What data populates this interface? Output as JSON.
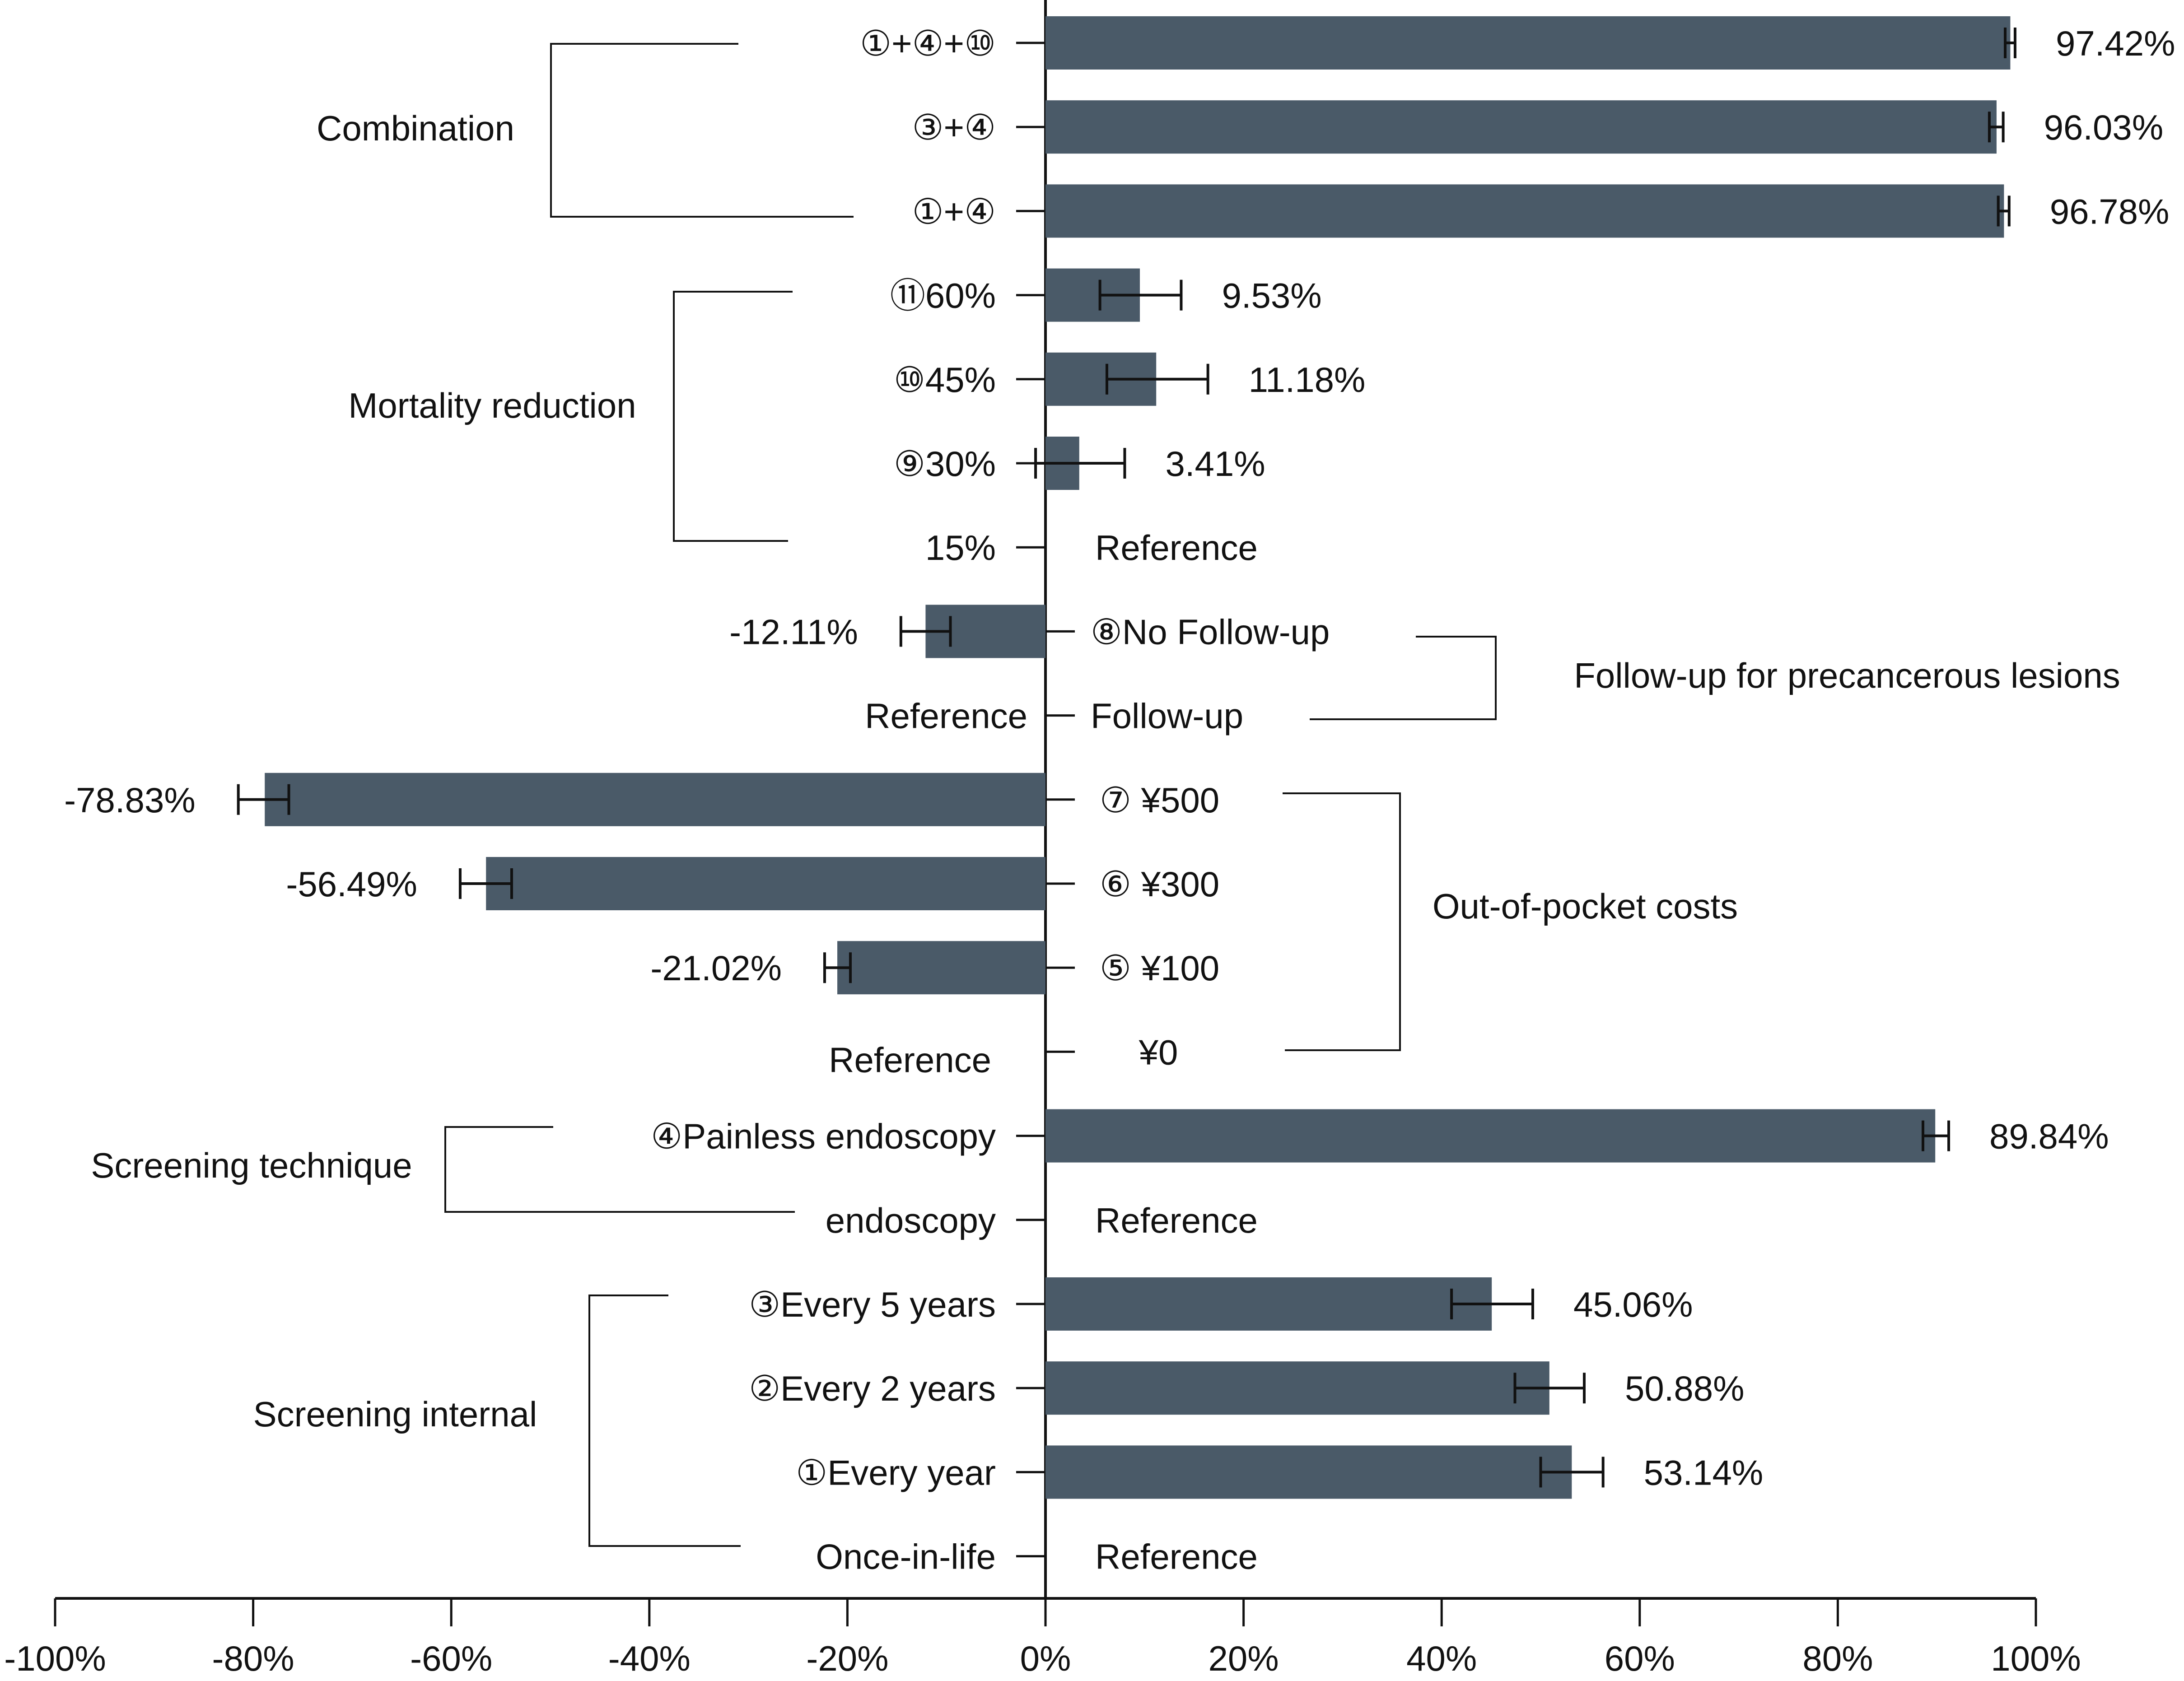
{
  "chart_data": {
    "type": "bar",
    "orientation": "horizontal",
    "xlabel": "",
    "ylabel": "",
    "xlim": [
      -100,
      100
    ],
    "x_ticks": [
      -100,
      -80,
      -60,
      -40,
      -20,
      0,
      20,
      40,
      60,
      80,
      100
    ],
    "x_tick_labels": [
      "-100%",
      "-80%",
      "-60%",
      "-40%",
      "-20%",
      "0%",
      "20%",
      "40%",
      "60%",
      "80%",
      "100%"
    ],
    "bar_color": "#4a5a68",
    "rows": [
      {
        "label": "①+④+⑩",
        "value": 97.42,
        "err_low": 96.9,
        "err_high": 97.9,
        "value_label": "97.42%"
      },
      {
        "label": "③+④",
        "value": 96.03,
        "err_low": 95.3,
        "err_high": 96.7,
        "value_label": "96.03%"
      },
      {
        "label": "①+④",
        "value": 96.78,
        "err_low": 96.2,
        "err_high": 97.3,
        "value_label": "96.78%"
      },
      {
        "label": "⑪60%",
        "value": 9.53,
        "err_low": 5.5,
        "err_high": 13.7,
        "value_label": "9.53%"
      },
      {
        "label": "⑩45%",
        "value": 11.18,
        "err_low": 6.2,
        "err_high": 16.4,
        "value_label": "11.18%"
      },
      {
        "label": "⑨30%",
        "value": 3.41,
        "err_low": -1.0,
        "err_high": 8.0,
        "value_label": "3.41%"
      },
      {
        "label": "15%",
        "value": null,
        "value_label": "Reference"
      },
      {
        "label": "⑧No Follow-up",
        "value": -12.11,
        "err_low": -14.6,
        "err_high": -9.6,
        "value_label": "-12.11%"
      },
      {
        "label": "Follow-up",
        "value": null,
        "value_label": "Reference"
      },
      {
        "label": "⑦ ¥500",
        "value": -78.83,
        "err_low": -81.5,
        "err_high": -76.4,
        "value_label": "-78.83%"
      },
      {
        "label": "⑥ ¥300",
        "value": -56.49,
        "err_low": -59.1,
        "err_high": -53.9,
        "value_label": "-56.49%"
      },
      {
        "label": "⑤ ¥100",
        "value": -21.02,
        "err_low": -22.3,
        "err_high": -19.7,
        "value_label": "-21.02%"
      },
      {
        "label": "¥0",
        "value": null,
        "value_label": "Reference"
      },
      {
        "label": "④Painless endoscopy",
        "value": 89.84,
        "err_low": 88.6,
        "err_high": 91.2,
        "value_label": "89.84%"
      },
      {
        "label": "endoscopy",
        "value": null,
        "value_label": "Reference"
      },
      {
        "label": "③Every 5 years",
        "value": 45.06,
        "err_low": 41.0,
        "err_high": 49.2,
        "value_label": "45.06%"
      },
      {
        "label": "②Every 2 years",
        "value": 50.88,
        "err_low": 47.4,
        "err_high": 54.4,
        "value_label": "50.88%"
      },
      {
        "label": "①Every year",
        "value": 53.14,
        "err_low": 50.0,
        "err_high": 56.3,
        "value_label": "53.14%"
      },
      {
        "label": "Once-in-life",
        "value": null,
        "value_label": "Reference"
      }
    ],
    "groups": [
      {
        "name": "Combination",
        "first_row": 0,
        "last_row": 2
      },
      {
        "name": "Mortality reduction",
        "first_row": 3,
        "last_row": 6
      },
      {
        "name": "Follow-up for precancerous lesions",
        "first_row": 7,
        "last_row": 8
      },
      {
        "name": "Out-of-pocket costs",
        "first_row": 9,
        "last_row": 12
      },
      {
        "name": "Screening technique",
        "first_row": 13,
        "last_row": 14
      },
      {
        "name": "Screening internal",
        "first_row": 15,
        "last_row": 18
      }
    ]
  }
}
